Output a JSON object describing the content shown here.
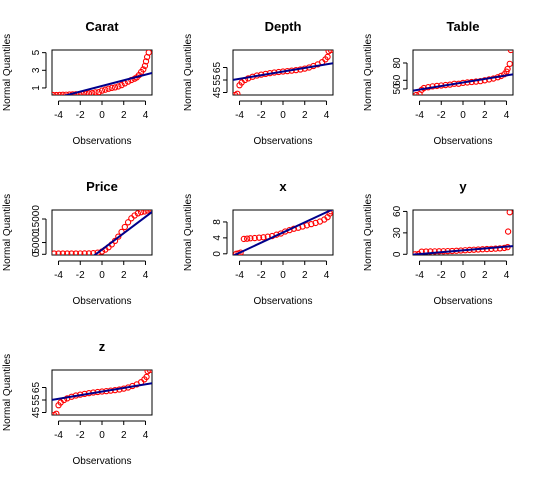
{
  "figure": {
    "background": "#ffffff",
    "point_color": "#ff0000",
    "line_color": "#00008b"
  },
  "chart_data": [
    {
      "type": "scatter",
      "title": "Carat",
      "xlabel": "Observations",
      "ylabel": "Normal Quantiles",
      "xlim": [
        -4.6,
        4.6
      ],
      "xticks": [
        -4,
        -2,
        0,
        2,
        4
      ],
      "ylim": [
        0.2,
        5.3
      ],
      "yticks": [
        1,
        3,
        5
      ],
      "reference_line": [
        [
          -4.6,
          -0.25
        ],
        [
          4.6,
          2.7
        ]
      ],
      "points": [
        [
          -4.5,
          0.2
        ],
        [
          -4.2,
          0.2
        ],
        [
          -3.9,
          0.21
        ],
        [
          -3.6,
          0.22
        ],
        [
          -3.3,
          0.23
        ],
        [
          -3,
          0.25
        ],
        [
          -2.7,
          0.27
        ],
        [
          -2.4,
          0.28
        ],
        [
          -2.1,
          0.3
        ],
        [
          -1.8,
          0.31
        ],
        [
          -1.5,
          0.33
        ],
        [
          -1.2,
          0.38
        ],
        [
          -0.9,
          0.41
        ],
        [
          -0.6,
          0.5
        ],
        [
          -0.3,
          0.53
        ],
        [
          0,
          0.7
        ],
        [
          0.3,
          0.8
        ],
        [
          0.6,
          0.91
        ],
        [
          0.9,
          1.01
        ],
        [
          1.2,
          1.06
        ],
        [
          1.5,
          1.17
        ],
        [
          1.8,
          1.32
        ],
        [
          2.1,
          1.52
        ],
        [
          2.4,
          1.72
        ],
        [
          2.7,
          1.9
        ],
        [
          3,
          2.05
        ],
        [
          3.2,
          2.2
        ],
        [
          3.4,
          2.45
        ],
        [
          3.6,
          2.8
        ],
        [
          3.8,
          3.1
        ],
        [
          3.95,
          3.5
        ],
        [
          4.05,
          4.01
        ],
        [
          4.15,
          4.5
        ],
        [
          4.3,
          5.01
        ]
      ]
    },
    {
      "type": "scatter",
      "title": "Depth",
      "xlabel": "Observations",
      "ylabel": "Normal Quantiles",
      "xlim": [
        -4.6,
        4.6
      ],
      "xticks": [
        -4,
        -2,
        0,
        2,
        4
      ],
      "ylim": [
        43,
        79
      ],
      "yticks": [
        45,
        55,
        65
      ],
      "reference_line": [
        [
          -4.6,
          55.1
        ],
        [
          4.6,
          68.4
        ]
      ],
      "points": [
        [
          -4.4,
          43
        ],
        [
          -4.2,
          44
        ],
        [
          -4,
          50.8
        ],
        [
          -3.8,
          53
        ],
        [
          -3.5,
          55
        ],
        [
          -3.2,
          56.3
        ],
        [
          -2.8,
          57.6
        ],
        [
          -2.4,
          58.6
        ],
        [
          -2,
          59.3
        ],
        [
          -1.6,
          59.9
        ],
        [
          -1.2,
          60.5
        ],
        [
          -0.8,
          61
        ],
        [
          -0.4,
          61.4
        ],
        [
          0,
          61.8
        ],
        [
          0.4,
          62.1
        ],
        [
          0.8,
          62.5
        ],
        [
          1.2,
          62.9
        ],
        [
          1.6,
          63.4
        ],
        [
          2,
          64.1
        ],
        [
          2.4,
          65
        ],
        [
          2.8,
          66.2
        ],
        [
          3.2,
          67.5
        ],
        [
          3.6,
          69.3
        ],
        [
          3.9,
          71.5
        ],
        [
          4.1,
          73.5
        ],
        [
          4.2,
          78
        ],
        [
          4.4,
          79
        ]
      ]
    },
    {
      "type": "scatter",
      "title": "Table",
      "xlabel": "Observations",
      "ylabel": "Normal Quantiles",
      "xlim": [
        -4.6,
        4.6
      ],
      "xticks": [
        -4,
        -2,
        0,
        2,
        4
      ],
      "ylim": [
        43,
        95
      ],
      "yticks": [
        50,
        60,
        80
      ],
      "reference_line": [
        [
          -4.6,
          48
        ],
        [
          4.6,
          66.9
        ]
      ],
      "points": [
        [
          -4.3,
          43
        ],
        [
          -4,
          44
        ],
        [
          -3.8,
          49
        ],
        [
          -3.6,
          51
        ],
        [
          -3.2,
          52
        ],
        [
          -2.8,
          53
        ],
        [
          -2.4,
          53.5
        ],
        [
          -2,
          54
        ],
        [
          -1.6,
          54.5
        ],
        [
          -1.2,
          55
        ],
        [
          -0.8,
          56
        ],
        [
          -0.4,
          56
        ],
        [
          0,
          57
        ],
        [
          0.4,
          57.5
        ],
        [
          0.8,
          58
        ],
        [
          1.2,
          58.5
        ],
        [
          1.6,
          59
        ],
        [
          2,
          60
        ],
        [
          2.4,
          61
        ],
        [
          2.8,
          62
        ],
        [
          3.2,
          63.5
        ],
        [
          3.5,
          65
        ],
        [
          3.8,
          67
        ],
        [
          4,
          70
        ],
        [
          4.1,
          73
        ],
        [
          4.3,
          79
        ],
        [
          4.4,
          95
        ]
      ]
    },
    {
      "type": "scatter",
      "title": "Price",
      "xlabel": "Observations",
      "ylabel": "Normal Quantiles",
      "xlim": [
        -4.6,
        4.6
      ],
      "xticks": [
        -4,
        -2,
        0,
        2,
        4
      ],
      "ylim": [
        -300,
        18823
      ],
      "yticks": [
        0,
        5000,
        15000
      ],
      "reference_line": [
        [
          -4.6,
          -14000
        ],
        [
          4.6,
          18000
        ]
      ],
      "points": [
        [
          -4.4,
          326
        ],
        [
          -4,
          326
        ],
        [
          -3.6,
          327
        ],
        [
          -3.2,
          330
        ],
        [
          -2.8,
          335
        ],
        [
          -2.4,
          340
        ],
        [
          -2,
          345
        ],
        [
          -1.6,
          360
        ],
        [
          -1.2,
          380
        ],
        [
          -0.8,
          470
        ],
        [
          -0.4,
          700
        ],
        [
          0,
          1200
        ],
        [
          0.3,
          2000
        ],
        [
          0.6,
          3000
        ],
        [
          0.9,
          4200
        ],
        [
          1.2,
          5700
        ],
        [
          1.5,
          7500
        ],
        [
          1.8,
          9500
        ],
        [
          2.1,
          11600
        ],
        [
          2.4,
          13600
        ],
        [
          2.7,
          15300
        ],
        [
          3,
          16500
        ],
        [
          3.3,
          17400
        ],
        [
          3.6,
          17900
        ],
        [
          3.9,
          18200
        ],
        [
          4.2,
          18600
        ],
        [
          4.5,
          18823
        ]
      ]
    },
    {
      "type": "scatter",
      "title": "x",
      "xlabel": "Observations",
      "ylabel": "Normal Quantiles",
      "xlim": [
        -4.6,
        4.6
      ],
      "xticks": [
        -4,
        -2,
        0,
        2,
        4
      ],
      "ylim": [
        -0.3,
        11
      ],
      "yticks": [
        0,
        4,
        8
      ],
      "reference_line": [
        [
          -4.6,
          -0.5
        ],
        [
          4.6,
          11.2
        ]
      ],
      "points": [
        [
          -4.3,
          0
        ],
        [
          -4.1,
          0.1
        ],
        [
          -3.9,
          0.3
        ],
        [
          -3.6,
          3.73
        ],
        [
          -3.3,
          3.8
        ],
        [
          -3,
          3.9
        ],
        [
          -2.6,
          3.95
        ],
        [
          -2.2,
          4.05
        ],
        [
          -1.8,
          4.15
        ],
        [
          -1.4,
          4.3
        ],
        [
          -1,
          4.45
        ],
        [
          -0.6,
          4.8
        ],
        [
          -0.2,
          5.1
        ],
        [
          0.2,
          5.6
        ],
        [
          0.6,
          5.95
        ],
        [
          1,
          6.3
        ],
        [
          1.4,
          6.55
        ],
        [
          1.8,
          6.85
        ],
        [
          2.2,
          7.15
        ],
        [
          2.6,
          7.45
        ],
        [
          3,
          7.75
        ],
        [
          3.4,
          8.1
        ],
        [
          3.8,
          8.6
        ],
        [
          4.1,
          9.2
        ],
        [
          4.3,
          10.1
        ],
        [
          4.4,
          10.7
        ]
      ]
    },
    {
      "type": "scatter",
      "title": "y",
      "xlabel": "Observations",
      "ylabel": "Normal Quantiles",
      "xlim": [
        -4.6,
        4.6
      ],
      "xticks": [
        -4,
        -2,
        0,
        2,
        4
      ],
      "ylim": [
        -1,
        62
      ],
      "yticks": [
        0,
        30,
        60
      ],
      "reference_line": [
        [
          -4.6,
          -0.5
        ],
        [
          4.6,
          11.5
        ]
      ],
      "points": [
        [
          -4.4,
          0
        ],
        [
          -4.1,
          0.3
        ],
        [
          -3.8,
          3.7
        ],
        [
          -3.4,
          3.9
        ],
        [
          -3,
          4
        ],
        [
          -2.6,
          4.1
        ],
        [
          -2.2,
          4.2
        ],
        [
          -1.8,
          4.3
        ],
        [
          -1.4,
          4.45
        ],
        [
          -1,
          4.6
        ],
        [
          -0.6,
          4.9
        ],
        [
          -0.2,
          5.3
        ],
        [
          0.2,
          5.7
        ],
        [
          0.6,
          6.1
        ],
        [
          1,
          6.4
        ],
        [
          1.4,
          6.7
        ],
        [
          1.8,
          7
        ],
        [
          2.2,
          7.3
        ],
        [
          2.6,
          7.6
        ],
        [
          3,
          7.9
        ],
        [
          3.4,
          8.3
        ],
        [
          3.8,
          8.9
        ],
        [
          4.1,
          10
        ],
        [
          4.15,
          31.8
        ],
        [
          4.3,
          58.9
        ]
      ]
    },
    {
      "type": "scatter",
      "title": "z",
      "xlabel": "Observations",
      "ylabel": "Normal Quantiles",
      "xlim": [
        -4.6,
        4.6
      ],
      "xticks": [
        -4,
        -2,
        0,
        2,
        4
      ],
      "ylim": [
        43,
        79
      ],
      "yticks": [
        45,
        55,
        65
      ],
      "reference_line": [
        [
          -4.6,
          55.1
        ],
        [
          4.6,
          68.4
        ]
      ],
      "points": [
        [
          -4.4,
          43
        ],
        [
          -4.2,
          44
        ],
        [
          -4,
          50.8
        ],
        [
          -3.8,
          53
        ],
        [
          -3.5,
          55
        ],
        [
          -3.2,
          56.3
        ],
        [
          -2.8,
          57.6
        ],
        [
          -2.4,
          58.6
        ],
        [
          -2,
          59.3
        ],
        [
          -1.6,
          59.9
        ],
        [
          -1.2,
          60.5
        ],
        [
          -0.8,
          61
        ],
        [
          -0.4,
          61.4
        ],
        [
          0,
          61.8
        ],
        [
          0.4,
          62.1
        ],
        [
          0.8,
          62.5
        ],
        [
          1.2,
          62.9
        ],
        [
          1.6,
          63.4
        ],
        [
          2,
          64.1
        ],
        [
          2.4,
          65
        ],
        [
          2.8,
          66.2
        ],
        [
          3.2,
          67.5
        ],
        [
          3.6,
          69.3
        ],
        [
          3.9,
          71.5
        ],
        [
          4.1,
          73.5
        ],
        [
          4.2,
          78
        ],
        [
          4.4,
          79
        ]
      ]
    }
  ]
}
